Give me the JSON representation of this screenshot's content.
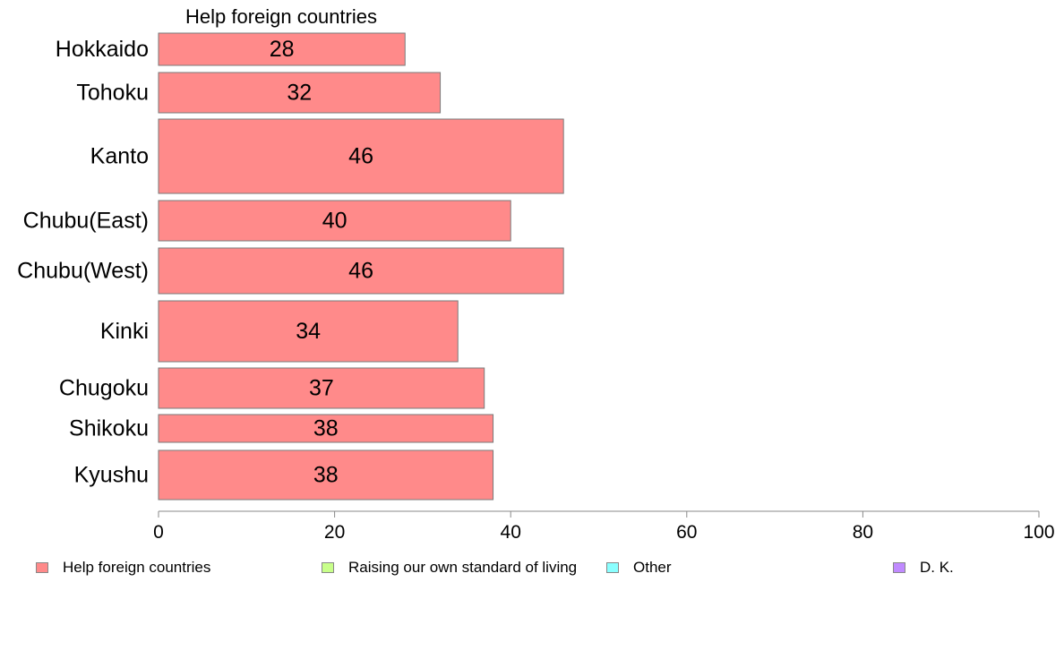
{
  "chart_data": {
    "type": "bar",
    "orientation": "horizontal",
    "series_title": "Help foreign countries",
    "categories": [
      "Hokkaido",
      "Tohoku",
      "Kanto",
      "Chubu(East)",
      "Chubu(West)",
      "Kinki",
      "Chugoku",
      "Shikoku",
      "Kyushu"
    ],
    "series": [
      {
        "name": "Help foreign countries",
        "values": [
          28,
          32,
          46,
          40,
          46,
          34,
          37,
          38,
          38
        ],
        "color": "#ff8a8a"
      }
    ],
    "xlim": [
      0,
      100
    ],
    "xticks": [
      0,
      20,
      40,
      60,
      80,
      100
    ],
    "grid": false,
    "legend_position": "bottom",
    "legend": [
      {
        "label": "Help foreign countries",
        "color": "#ff8a8a"
      },
      {
        "label": "Raising our own standard of living",
        "color": "#c8ff8a"
      },
      {
        "label": "Other",
        "color": "#8affff"
      },
      {
        "label": "D. K.",
        "color": "#c08aff"
      }
    ]
  }
}
